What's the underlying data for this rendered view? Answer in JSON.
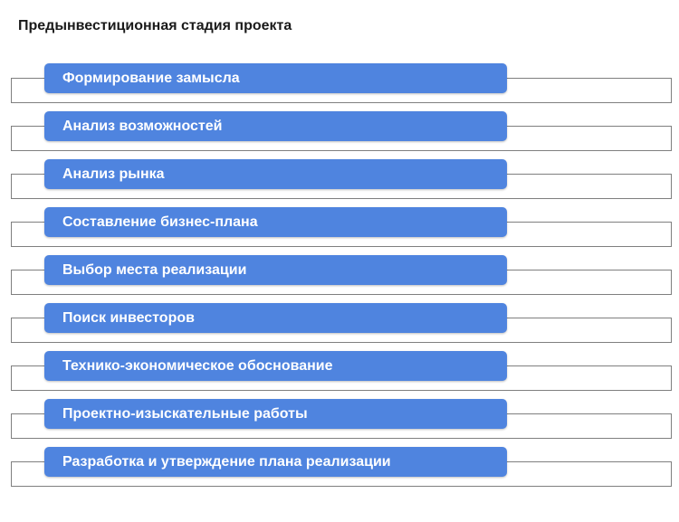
{
  "title": "Предынвестиционная стадия проекта",
  "colors": {
    "stage_fill": "#4f84df",
    "stage_text": "#ffffff",
    "frame_border": "#7f7f7f"
  },
  "stages": [
    "Формирование замысла",
    "Анализ возможностей",
    "Анализ рынка",
    "Составление бизнес-плана",
    "Выбор места реализации",
    "Поиск инвесторов",
    "Технико-экономическое обоснование",
    "Проектно-изыскательные работы",
    "Разработка и утверждение плана реализации"
  ]
}
